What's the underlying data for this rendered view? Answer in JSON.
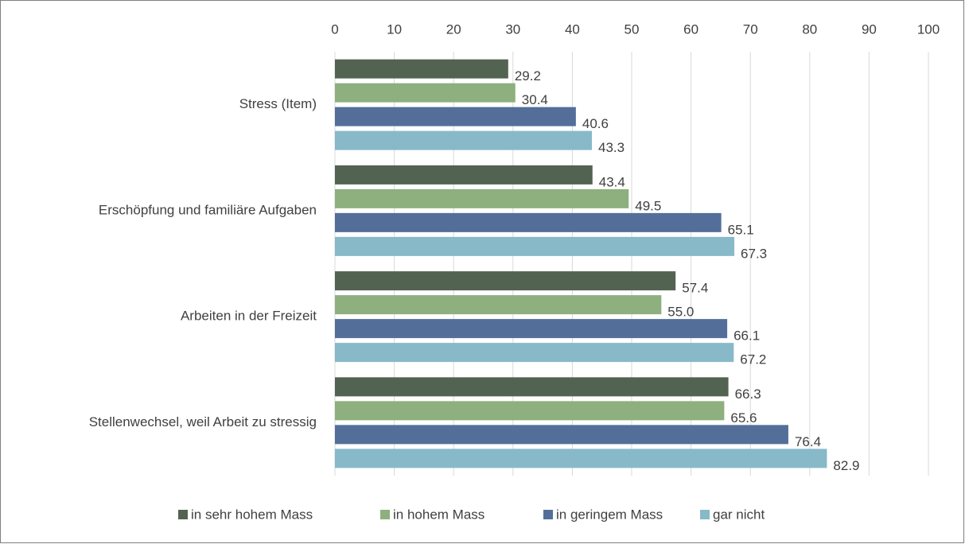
{
  "chart_data": {
    "type": "bar",
    "orientation": "horizontal",
    "categories": [
      "Stress (Item)",
      "Erschöpfung und familiäre Aufgaben",
      "Arbeiten in der Freizeit",
      "Stellenwechsel, weil Arbeit zu stressig"
    ],
    "series": [
      {
        "name": "in sehr hohem Mass",
        "color": "#536352",
        "values": [
          29.2,
          43.4,
          57.4,
          66.3
        ],
        "value_labels": [
          "29.2",
          "43.4",
          "57.4",
          "66.3"
        ]
      },
      {
        "name": "in hohem Mass",
        "color": "#8db07e",
        "values": [
          30.4,
          49.5,
          55.0,
          65.6
        ],
        "value_labels": [
          "30.4",
          "49.5",
          "55.0",
          "65.6"
        ]
      },
      {
        "name": "in geringem Mass",
        "color": "#536f99",
        "values": [
          40.6,
          65.1,
          66.1,
          76.4
        ],
        "value_labels": [
          "40.6",
          "65.1",
          "66.1",
          "76.4"
        ]
      },
      {
        "name": "gar nicht",
        "color": "#87b9c9",
        "values": [
          43.3,
          67.3,
          67.2,
          82.9
        ],
        "value_labels": [
          "43.3",
          "67.3",
          "67.2",
          "82.9"
        ]
      }
    ],
    "xlim": [
      0,
      100
    ],
    "xticks": [
      0,
      10,
      20,
      30,
      40,
      50,
      60,
      70,
      80,
      90,
      100
    ],
    "grid": true,
    "legend": "bottom"
  }
}
